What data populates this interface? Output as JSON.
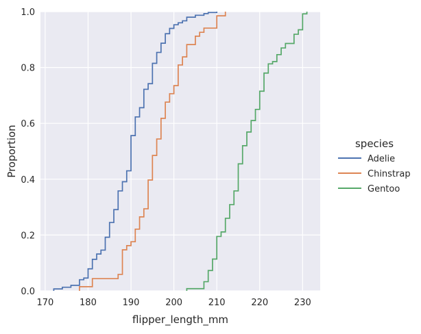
{
  "chart_data": {
    "type": "line",
    "subtype": "ecdf-step",
    "xlabel": "flipper_length_mm",
    "ylabel": "Proportion",
    "xlim": [
      168.9,
      234.1
    ],
    "ylim": [
      0,
      1
    ],
    "xticks": [
      170,
      180,
      190,
      200,
      210,
      220,
      230
    ],
    "yticks": [
      0.0,
      0.2,
      0.4,
      0.6,
      0.8,
      1.0
    ],
    "grid": true,
    "background": "#eaeaf2",
    "grid_color": "#ffffff",
    "legend": {
      "title": "species",
      "placement": "right-outside"
    },
    "series": [
      {
        "name": "Adelie",
        "color": "#4c72b0",
        "x": [
          172,
          174,
          176,
          178,
          179,
          180,
          181,
          182,
          183,
          184,
          185,
          186,
          187,
          188,
          189,
          190,
          191,
          192,
          193,
          194,
          195,
          196,
          197,
          198,
          199,
          200,
          201,
          202,
          203,
          205,
          207,
          208,
          210
        ],
        "y": [
          0.007,
          0.013,
          0.02,
          0.04,
          0.046,
          0.079,
          0.113,
          0.132,
          0.146,
          0.192,
          0.245,
          0.291,
          0.358,
          0.391,
          0.43,
          0.556,
          0.623,
          0.656,
          0.722,
          0.742,
          0.815,
          0.854,
          0.887,
          0.921,
          0.94,
          0.953,
          0.96,
          0.967,
          0.98,
          0.987,
          0.993,
          0.997,
          1.0
        ]
      },
      {
        "name": "Chinstrap",
        "color": "#dd8452",
        "x": [
          178,
          181,
          187,
          188,
          189,
          190,
          191,
          192,
          193,
          194,
          195,
          196,
          197,
          198,
          199,
          200,
          201,
          202,
          203,
          205,
          206,
          207,
          208,
          210,
          212
        ],
        "y": [
          0.015,
          0.044,
          0.059,
          0.147,
          0.162,
          0.176,
          0.221,
          0.265,
          0.294,
          0.397,
          0.485,
          0.544,
          0.618,
          0.676,
          0.706,
          0.735,
          0.809,
          0.838,
          0.882,
          0.912,
          0.926,
          0.941,
          0.941,
          0.985,
          1.0
        ]
      },
      {
        "name": "Gentoo",
        "color": "#55a868",
        "x": [
          203,
          207,
          208,
          209,
          210,
          211,
          212,
          213,
          214,
          215,
          216,
          217,
          218,
          219,
          220,
          221,
          222,
          223,
          224,
          225,
          226,
          228,
          229,
          230,
          231
        ],
        "y": [
          0.008,
          0.033,
          0.073,
          0.114,
          0.195,
          0.211,
          0.26,
          0.309,
          0.358,
          0.455,
          0.52,
          0.569,
          0.61,
          0.65,
          0.715,
          0.78,
          0.813,
          0.821,
          0.846,
          0.87,
          0.886,
          0.919,
          0.935,
          0.992,
          1.0
        ]
      }
    ]
  }
}
